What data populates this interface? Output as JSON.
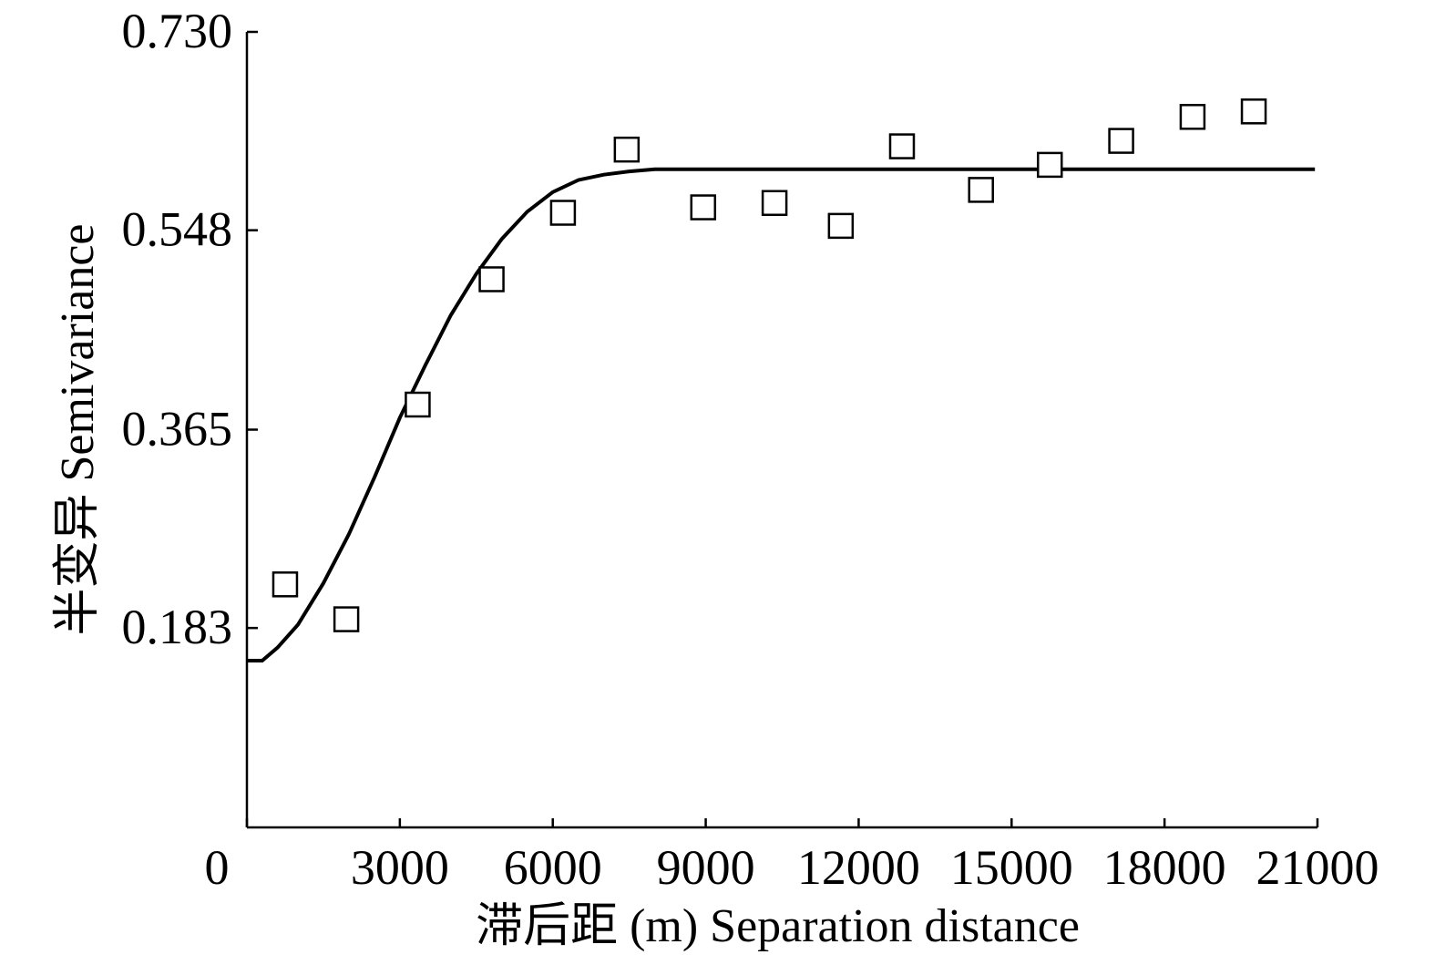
{
  "chart_data": {
    "type": "scatter",
    "xlabel": "滞后距 (m) Separation distance",
    "ylabel": "半变异 Semivariance",
    "xlim": [
      0,
      21000
    ],
    "ylim": [
      0.0,
      0.73
    ],
    "xticks": [
      0,
      3000,
      6000,
      9000,
      12000,
      15000,
      18000,
      21000
    ],
    "yticks": [
      0.183,
      0.365,
      0.548,
      0.73
    ],
    "xtick_labels": [
      "0",
      "3000",
      "6000",
      "9000",
      "12000",
      "15000",
      "18000",
      "21000"
    ],
    "ytick_labels": [
      "0.183",
      "0.365",
      "0.548",
      "0.730"
    ],
    "series": [
      {
        "kind": "points",
        "marker": "open-square",
        "x": [
          750,
          1950,
          3350,
          4800,
          6200,
          7450,
          8950,
          10350,
          11650,
          12850,
          14400,
          15750,
          17150,
          18550,
          19750
        ],
        "y": [
          0.223,
          0.191,
          0.388,
          0.503,
          0.564,
          0.622,
          0.569,
          0.573,
          0.552,
          0.625,
          0.585,
          0.608,
          0.63,
          0.652,
          0.657
        ]
      },
      {
        "kind": "fitted-line",
        "model": "gaussian",
        "nugget": 0.153,
        "sill": 0.604,
        "x": [
          0,
          300,
          600,
          1000,
          1500,
          2000,
          2500,
          3000,
          3500,
          4000,
          4500,
          5000,
          5500,
          6000,
          6500,
          7000,
          7500,
          8000,
          9000,
          11000,
          14000,
          17000,
          20000,
          20950
        ],
        "y": [
          0.153,
          0.153,
          0.165,
          0.186,
          0.224,
          0.269,
          0.321,
          0.376,
          0.424,
          0.47,
          0.508,
          0.54,
          0.565,
          0.583,
          0.594,
          0.599,
          0.602,
          0.604,
          0.604,
          0.604,
          0.604,
          0.604,
          0.604,
          0.604
        ]
      }
    ]
  }
}
